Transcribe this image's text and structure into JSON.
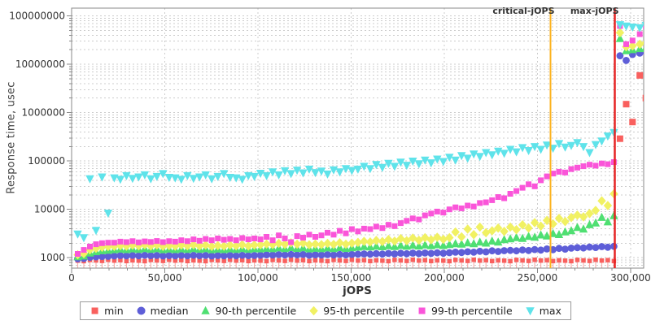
{
  "chart_data": {
    "type": "scatter",
    "title": "",
    "xlabel": "jOPS",
    "ylabel": "Response time, usec",
    "x_scale": "linear",
    "y_scale": "log",
    "xlim": [
      0,
      307000
    ],
    "ylim": [
      610,
      145000000
    ],
    "grid": {
      "horizontal": "all-log-ticks",
      "vertical": "major-only",
      "style": "dashed"
    },
    "x_major_ticks": [
      {
        "value": 0,
        "label": "0"
      },
      {
        "value": 50000,
        "label": "50,000"
      },
      {
        "value": 100000,
        "label": "100,000"
      },
      {
        "value": 150000,
        "label": "150,000"
      },
      {
        "value": 200000,
        "label": "200,000"
      },
      {
        "value": 250000,
        "label": "250,000"
      },
      {
        "value": 300000,
        "label": "300,000"
      }
    ],
    "x_minor_tick_step": 10000,
    "y_major_ticks": [
      {
        "value": 1000,
        "label": "1000"
      },
      {
        "value": 10000,
        "label": "10000"
      },
      {
        "value": 100000,
        "label": "100000"
      },
      {
        "value": 1000000,
        "label": "1000000"
      },
      {
        "value": 10000000,
        "label": "10000000"
      },
      {
        "value": 100000000,
        "label": "100000000"
      }
    ],
    "legend_position": "bottom",
    "annotations": [
      {
        "label": "critical-jOPS",
        "x": 257000,
        "color": "#fcb321",
        "line_width": 2
      },
      {
        "label": "max-jOPS",
        "x": 291500,
        "color": "#e62424",
        "line_width": 2.5
      }
    ],
    "x": [
      3270,
      6540,
      9810,
      13080,
      16350,
      19620,
      22890,
      26160,
      29430,
      32700,
      35970,
      39240,
      42510,
      45780,
      49050,
      52320,
      55590,
      58860,
      62130,
      65400,
      68670,
      71940,
      75210,
      78480,
      81750,
      85020,
      88290,
      91560,
      94830,
      98100,
      101370,
      104640,
      107910,
      111180,
      114450,
      117720,
      120990,
      124260,
      127530,
      130800,
      134070,
      137340,
      140610,
      143880,
      147150,
      150420,
      153690,
      156960,
      160230,
      163500,
      166770,
      170040,
      173310,
      176580,
      179850,
      183120,
      186390,
      189660,
      192930,
      196200,
      199470,
      202740,
      206010,
      209280,
      212550,
      215820,
      219090,
      222360,
      225630,
      228900,
      232170,
      235440,
      238710,
      241980,
      245250,
      248520,
      251790,
      255060,
      258330,
      261600,
      264870,
      268140,
      271410,
      274680,
      277950,
      281220,
      284490,
      287760,
      291030,
      294300,
      297600,
      301000,
      304900,
      308200
    ],
    "series": [
      {
        "key": "min",
        "label": "min",
        "shape": "square",
        "color": "#f9605e",
        "marker_size": 5.5,
        "stem": {
          "enabled": true,
          "color": "#f6b2b0",
          "max_value": 5000
        },
        "values": [
          870,
          850,
          900,
          880,
          860,
          910,
          875,
          890,
          855,
          885,
          870,
          850,
          900,
          880,
          860,
          910,
          875,
          890,
          855,
          885,
          870,
          850,
          900,
          880,
          860,
          910,
          875,
          890,
          855,
          885,
          870,
          850,
          900,
          880,
          860,
          910,
          875,
          890,
          855,
          885,
          870,
          850,
          900,
          880,
          860,
          910,
          875,
          890,
          855,
          885,
          870,
          850,
          900,
          880,
          860,
          910,
          875,
          890,
          855,
          885,
          870,
          850,
          900,
          880,
          860,
          910,
          875,
          890,
          855,
          885,
          870,
          850,
          900,
          880,
          860,
          910,
          875,
          890,
          855,
          885,
          870,
          850,
          900,
          880,
          860,
          910,
          875,
          890,
          855,
          290000,
          1500000,
          640000,
          5900000,
          2000000
        ]
      },
      {
        "key": "median",
        "label": "median",
        "shape": "circle",
        "color": "#5e5ed8",
        "marker_size": 8.8,
        "values": [
          950,
          965,
          1020,
          1045,
          1060,
          1070,
          1090,
          1110,
          1095,
          1120,
          1100,
          1125,
          1105,
          1115,
          1090,
          1110,
          1095,
          1120,
          1100,
          1125,
          1105,
          1115,
          1090,
          1110,
          1095,
          1120,
          1100,
          1125,
          1105,
          1115,
          1130,
          1150,
          1135,
          1160,
          1140,
          1170,
          1145,
          1175,
          1130,
          1150,
          1135,
          1160,
          1140,
          1170,
          1145,
          1175,
          1180,
          1200,
          1185,
          1215,
          1190,
          1230,
          1200,
          1240,
          1210,
          1250,
          1220,
          1255,
          1230,
          1260,
          1240,
          1270,
          1300,
          1280,
          1330,
          1300,
          1360,
          1320,
          1390,
          1350,
          1400,
          1420,
          1390,
          1450,
          1410,
          1480,
          1440,
          1520,
          1470,
          1560,
          1510,
          1580,
          1620,
          1590,
          1660,
          1630,
          1700,
          1650,
          1720,
          15000000,
          12000000,
          16000000,
          17000000,
          18000000
        ]
      },
      {
        "key": "p90",
        "label": "90-th percentile",
        "shape": "triangle-up",
        "color": "#4fdf72",
        "marker_size": 10,
        "values": [
          1050,
          1080,
          1250,
          1330,
          1390,
          1420,
          1460,
          1500,
          1470,
          1520,
          1480,
          1540,
          1490,
          1530,
          1460,
          1500,
          1470,
          1520,
          1480,
          1540,
          1490,
          1530,
          1460,
          1500,
          1470,
          1520,
          1480,
          1540,
          1490,
          1530,
          1520,
          1560,
          1530,
          1590,
          1540,
          1620,
          1550,
          1600,
          1520,
          1560,
          1530,
          1590,
          1540,
          1620,
          1550,
          1600,
          1650,
          1700,
          1660,
          1730,
          1680,
          1760,
          1700,
          1790,
          1720,
          1810,
          1740,
          1830,
          1760,
          1850,
          1780,
          1870,
          1950,
          1900,
          2020,
          1950,
          2100,
          2000,
          2200,
          2100,
          2350,
          2450,
          2600,
          2500,
          2750,
          2650,
          2950,
          2800,
          3150,
          3000,
          3400,
          3600,
          4200,
          3900,
          4800,
          5200,
          6800,
          5500,
          7400,
          34000000,
          19000000,
          20000000,
          21000000,
          22000000
        ]
      },
      {
        "key": "p95",
        "label": "95-th percentile",
        "shape": "diamond",
        "color": "#f1f163",
        "marker_size": 10,
        "values": [
          1150,
          1220,
          1460,
          1560,
          1650,
          1700,
          1720,
          1780,
          1740,
          1820,
          1760,
          1860,
          1750,
          1830,
          1720,
          1780,
          1740,
          1820,
          1760,
          1860,
          1750,
          1830,
          1720,
          1780,
          1740,
          1820,
          1760,
          1860,
          1750,
          1830,
          1850,
          1920,
          1870,
          1980,
          1890,
          2040,
          1900,
          2000,
          1850,
          1920,
          1870,
          1980,
          1890,
          2040,
          1900,
          2000,
          2080,
          2180,
          2120,
          2280,
          2160,
          2380,
          2200,
          2480,
          2250,
          2550,
          2300,
          2600,
          2350,
          2650,
          2400,
          2600,
          3400,
          2700,
          3900,
          3000,
          4300,
          3300,
          3600,
          4100,
          3500,
          4300,
          3800,
          4800,
          4100,
          5300,
          4500,
          5900,
          5000,
          6500,
          5600,
          6800,
          7600,
          7000,
          8200,
          9500,
          15000,
          12000,
          21000,
          45000000,
          23000000,
          24000000,
          26000000,
          28000000
        ]
      },
      {
        "key": "p99",
        "label": "99-th percentile",
        "shape": "square",
        "color": "#fa55d9",
        "marker_size": 7,
        "values": [
          1200,
          1450,
          1700,
          1900,
          2000,
          2050,
          2050,
          2150,
          2100,
          2200,
          2080,
          2180,
          2120,
          2220,
          2100,
          2200,
          2150,
          2300,
          2200,
          2400,
          2250,
          2450,
          2300,
          2500,
          2350,
          2450,
          2300,
          2550,
          2400,
          2500,
          2400,
          2700,
          2300,
          2900,
          2500,
          2100,
          2800,
          2600,
          3000,
          2700,
          2900,
          3300,
          3000,
          3600,
          3200,
          3900,
          3500,
          4000,
          3900,
          4400,
          4100,
          4800,
          4500,
          5200,
          5800,
          6500,
          6200,
          7500,
          8200,
          9000,
          8600,
          10000,
          11000,
          10500,
          12000,
          11500,
          13500,
          14000,
          15500,
          18000,
          17000,
          21000,
          24000,
          28000,
          33000,
          30000,
          40000,
          48000,
          55000,
          60000,
          58000,
          68000,
          73000,
          78000,
          84000,
          80000,
          89000,
          86000,
          95000,
          62000000,
          26000000,
          31000000,
          42000000,
          60000000
        ]
      },
      {
        "key": "max",
        "label": "max",
        "shape": "triangle-down",
        "color": "#5fe3ea",
        "marker_size": 10,
        "values": [
          3100,
          2600,
          43000,
          3700,
          47000,
          8400,
          45000,
          42000,
          50000,
          44000,
          47000,
          52000,
          43000,
          48000,
          55000,
          46000,
          45000,
          42000,
          50000,
          44000,
          47000,
          52000,
          43000,
          48000,
          55000,
          46000,
          45000,
          42000,
          50000,
          48000,
          56000,
          50000,
          60000,
          52000,
          63000,
          55000,
          65000,
          57000,
          68000,
          58000,
          62000,
          54000,
          66000,
          60000,
          70000,
          64000,
          68000,
          78000,
          70000,
          85000,
          74000,
          90000,
          78000,
          95000,
          82000,
          100000,
          88000,
          105000,
          92000,
          110000,
          98000,
          120000,
          105000,
          130000,
          115000,
          140000,
          125000,
          150000,
          135000,
          160000,
          145000,
          175000,
          155000,
          190000,
          165000,
          200000,
          175000,
          215000,
          185000,
          230000,
          195000,
          210000,
          240000,
          200000,
          150000,
          220000,
          260000,
          330000,
          390000,
          66000000,
          62000000,
          59000000,
          57000000,
          64000000
        ]
      }
    ]
  }
}
